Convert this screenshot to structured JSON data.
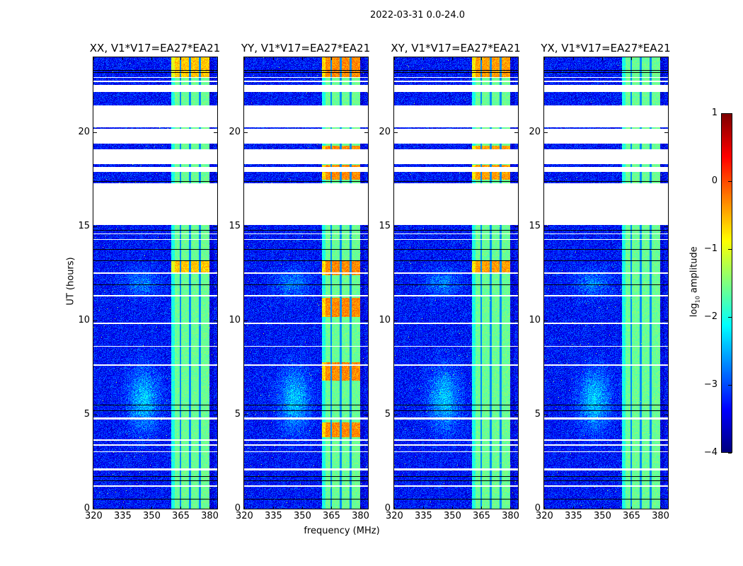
{
  "chart_data": {
    "type": "heatmap",
    "title": "2022-03-31 0.0-24.0",
    "xlabel": "frequency (MHz)",
    "ylabel": "UT (hours)",
    "xlim": [
      320,
      384
    ],
    "ylim": [
      0,
      24
    ],
    "xticks": [
      "320",
      "335",
      "350",
      "365",
      "380"
    ],
    "xtick_values": [
      320,
      335,
      350,
      365,
      380
    ],
    "yticks": [
      "0",
      "5",
      "10",
      "15",
      "20"
    ],
    "ytick_values": [
      0,
      5,
      10,
      15,
      20
    ],
    "colormap": "jet",
    "colorbar": {
      "label_main": "log",
      "label_sub": "10",
      "label_rest": " amplitude",
      "range": [
        -4,
        1
      ],
      "ticks": [
        "1",
        "0",
        "−1",
        "−2",
        "−3",
        "−4"
      ],
      "tick_values": [
        1,
        0,
        -1,
        -2,
        -3,
        -4
      ]
    },
    "panels": [
      {
        "title": "XX, V1*V17=EA27*EA21",
        "boost_hours": [
          [
            22.9,
            24
          ],
          [
            12.5,
            13.2
          ]
        ],
        "boost_level": -0.6
      },
      {
        "title": "YY, V1*V17=EA27*EA21",
        "boost_hours": [
          [
            22.9,
            24
          ],
          [
            12.4,
            13.2
          ],
          [
            10.2,
            11.2
          ],
          [
            3.8,
            4.6
          ],
          [
            6.8,
            7.8
          ],
          [
            17.5,
            18.3
          ],
          [
            18.9,
            19.3
          ]
        ],
        "boost_level": -0.3
      },
      {
        "title": "XY, V1*V17=EA27*EA21",
        "boost_hours": [
          [
            22.9,
            24
          ],
          [
            12.5,
            13.2
          ],
          [
            17.5,
            18.3
          ],
          [
            18.9,
            19.3
          ]
        ],
        "boost_level": -0.4
      },
      {
        "title": "YX, V1*V17=EA27*EA21",
        "boost_hours": [],
        "boost_level": -1.0
      }
    ],
    "background_level": -3.3,
    "rfi_band_mhz": [
      360.4,
      380
    ],
    "rfi_band_level": -1.6,
    "flagged_hours": [
      [
        22.9,
        22.95
      ],
      [
        22.7,
        22.75
      ],
      [
        22.15,
        22.55
      ],
      [
        20.27,
        21.44
      ],
      [
        19.41,
        20.19
      ],
      [
        18.31,
        19.1
      ],
      [
        17.9,
        18.18
      ],
      [
        15.07,
        17.31
      ],
      [
        14.6,
        14.65
      ],
      [
        14.3,
        14.35
      ],
      [
        12.5,
        12.55
      ],
      [
        11.3,
        11.36
      ],
      [
        9.8,
        9.9
      ],
      [
        8.6,
        8.65
      ],
      [
        7.6,
        7.66
      ],
      [
        4.75,
        4.85
      ],
      [
        3.6,
        3.7
      ],
      [
        3.35,
        3.42
      ],
      [
        3.0,
        3.05
      ],
      [
        2.05,
        2.15
      ],
      [
        1.15,
        1.25
      ]
    ]
  }
}
